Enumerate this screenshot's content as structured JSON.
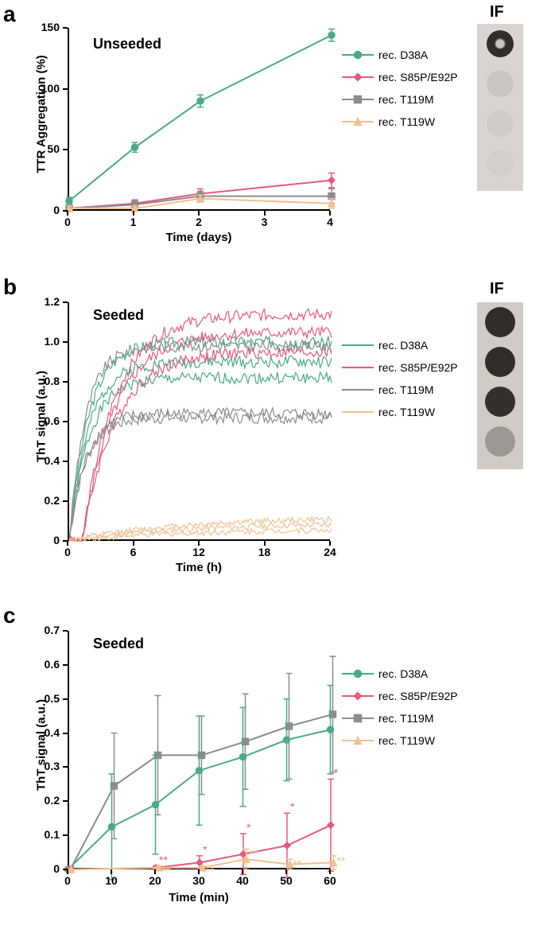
{
  "colors": {
    "D38A": "#4aaa8a",
    "S85P": "#e75a7c",
    "T119M": "#8c8c8c",
    "T119W": "#f0c091",
    "axis": "#000000",
    "bg": "#ffffff"
  },
  "series_labels": {
    "D38A": "rec. D38A",
    "S85P": "rec. S85P/E92P",
    "T119M": "rec. T119M",
    "T119W": "rec. T119W"
  },
  "panel_a": {
    "label": "a",
    "inner_title": "Unseeded",
    "x_title": "Time (days)",
    "y_title": "TTR Aggregation (%)",
    "xlim": [
      0,
      4
    ],
    "ylim": [
      0,
      150
    ],
    "xticks": [
      0,
      1,
      2,
      3,
      4
    ],
    "yticks": [
      0,
      50,
      100,
      150
    ],
    "ytick_labels": [
      "0",
      "50",
      "100",
      "150"
    ],
    "label_fontsize": 15,
    "tick_fontsize": 14,
    "marker_size": 8,
    "line_width": 2,
    "if_label": "IF",
    "if_dots": [
      {
        "o": 0.95,
        "ring": true
      },
      {
        "o": 0.08
      },
      {
        "o": 0.05
      },
      {
        "o": 0.03
      }
    ],
    "data": {
      "D38A": {
        "x": [
          0,
          1,
          2,
          4
        ],
        "y": [
          8,
          52,
          90,
          144
        ],
        "err": [
          3,
          4,
          5,
          5
        ],
        "marker": "circle"
      },
      "S85P": {
        "x": [
          0,
          1,
          2,
          4
        ],
        "y": [
          2,
          6,
          14,
          25
        ],
        "err": [
          2,
          3,
          4,
          6
        ],
        "marker": "diamond"
      },
      "T119M": {
        "x": [
          0,
          1,
          2,
          4
        ],
        "y": [
          2,
          5,
          12,
          12
        ],
        "err": [
          2,
          3,
          4,
          6
        ],
        "marker": "square"
      },
      "T119W": {
        "x": [
          0,
          1,
          2,
          4
        ],
        "y": [
          2,
          2,
          10,
          6
        ],
        "err": [
          2,
          2,
          3,
          4
        ],
        "marker": "triangle"
      }
    }
  },
  "panel_b": {
    "label": "b",
    "inner_title": "Seeded",
    "x_title": "Time (h)",
    "y_title": "ThT signal (a.u.)",
    "xlim": [
      0,
      24
    ],
    "ylim": [
      0,
      1.2
    ],
    "xticks": [
      0,
      6,
      12,
      18,
      24
    ],
    "yticks": [
      0,
      0.2,
      0.4,
      0.6,
      0.8,
      1.0,
      1.2
    ],
    "ytick_labels": [
      "0",
      "0.2",
      "0.4",
      "0.6",
      "0.8",
      "1.0",
      "1.2"
    ],
    "label_fontsize": 15,
    "tick_fontsize": 14,
    "line_width": 1.2,
    "if_label": "IF",
    "if_dots": [
      {
        "o": 0.95
      },
      {
        "o": 0.95
      },
      {
        "o": 0.93
      },
      {
        "o": 0.3
      }
    ],
    "replicates_end_levels": {
      "D38A": [
        0.82,
        0.9,
        1.0
      ],
      "S85P": [
        0.95,
        1.05,
        1.14
      ],
      "T119M": [
        0.62,
        0.64,
        0.98
      ],
      "T119W": [
        0.06,
        0.09,
        0.12
      ]
    },
    "rise_tau_h": {
      "D38A": 1.8,
      "S85P": 3.0,
      "T119M": 1.5,
      "T119W": 10
    },
    "lag_h": {
      "D38A": 0.0,
      "S85P": 1.2,
      "T119M": 0.0,
      "T119W": 0.0
    },
    "noise_amp": 0.03
  },
  "panel_c": {
    "label": "c",
    "inner_title": "Seeded",
    "x_title": "Time (min)",
    "y_title": "ThT signal (a.u.)",
    "xlim": [
      0,
      60
    ],
    "ylim": [
      0,
      0.7
    ],
    "xticks": [
      0,
      10,
      20,
      30,
      40,
      50,
      60
    ],
    "yticks": [
      0,
      0.1,
      0.2,
      0.3,
      0.4,
      0.5,
      0.6,
      0.7
    ],
    "ytick_labels": [
      "0",
      "0.1",
      "0.2",
      "0.3",
      "0.4",
      "0.5",
      "0.6",
      "0.7"
    ],
    "label_fontsize": 15,
    "tick_fontsize": 14,
    "marker_size": 8,
    "line_width": 2,
    "data": {
      "D38A": {
        "x": [
          0,
          10,
          20,
          30,
          40,
          50,
          60
        ],
        "y": [
          0,
          0.125,
          0.19,
          0.29,
          0.33,
          0.38,
          0.41
        ],
        "err": [
          0,
          0.155,
          0.145,
          0.16,
          0.145,
          0.12,
          0.13
        ],
        "marker": "circle"
      },
      "T119M": {
        "x": [
          0,
          10,
          20,
          30,
          40,
          50,
          60
        ],
        "y": [
          0,
          0.245,
          0.335,
          0.335,
          0.375,
          0.42,
          0.455
        ],
        "err": [
          0,
          0.155,
          0.175,
          0.115,
          0.14,
          0.155,
          0.17
        ],
        "marker": "square"
      },
      "S85P": {
        "x": [
          0,
          20,
          30,
          40,
          50,
          60
        ],
        "y": [
          0,
          0.005,
          0.02,
          0.045,
          0.07,
          0.13
        ],
        "err": [
          0,
          0.005,
          0.02,
          0.06,
          0.095,
          0.135
        ],
        "marker": "diamond",
        "sig": [
          "",
          "**",
          "*",
          "*",
          "*",
          "*"
        ]
      },
      "T119W": {
        "x": [
          0,
          20,
          30,
          40,
          50,
          60
        ],
        "y": [
          0,
          0.005,
          0.005,
          0.03,
          0.015,
          0.02
        ],
        "err": [
          0,
          0.005,
          0.005,
          0.03,
          0.015,
          0.02
        ],
        "marker": "triangle",
        "sig": [
          "",
          "**",
          "**",
          "**",
          "**",
          "**"
        ]
      }
    }
  }
}
